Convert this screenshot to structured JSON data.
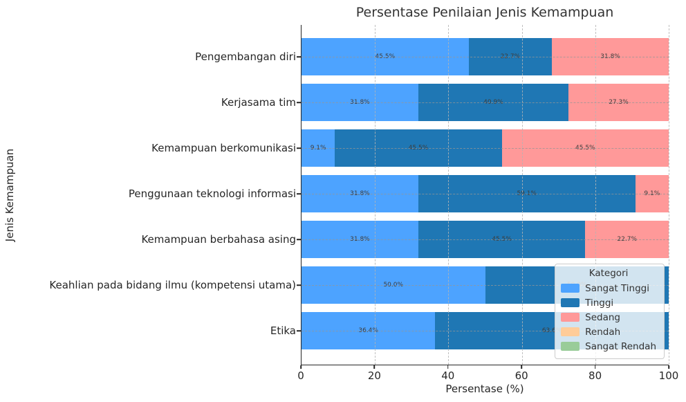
{
  "chart_data": {
    "type": "bar",
    "orientation": "horizontal",
    "stacked": true,
    "title": "Persentase Penilaian Jenis Kemampuan",
    "xlabel": "Persentase (%)",
    "ylabel": "Jenis Kemampuan",
    "xlim": [
      0,
      100
    ],
    "x_ticks": [
      0,
      20,
      40,
      60,
      80,
      100
    ],
    "grid": "dashed",
    "legend_title": "Kategori",
    "legend_position": "lower right",
    "categories": [
      "Pengembangan diri",
      "Kerjasama tim",
      "Kemampuan berkomunikasi",
      "Penggunaan teknologi informasi",
      "Kemampuan berbahasa asing",
      "Keahlian pada bidang ilmu (kompetensi utama)",
      "Etika"
    ],
    "series": [
      {
        "name": "Sangat Tinggi",
        "color": "#4DA3FF",
        "values": [
          45.5,
          31.8,
          9.1,
          31.8,
          31.8,
          50.0,
          36.4
        ]
      },
      {
        "name": "Tinggi",
        "color": "#1F77B4",
        "values": [
          22.7,
          40.9,
          45.5,
          59.1,
          45.5,
          50.0,
          63.6
        ]
      },
      {
        "name": "Sedang",
        "color": "#FF9999",
        "values": [
          31.8,
          27.3,
          45.5,
          9.1,
          22.7,
          0,
          0
        ]
      },
      {
        "name": "Rendah",
        "color": "#FFCC99",
        "values": [
          0,
          0,
          0,
          0,
          0,
          0,
          0
        ]
      },
      {
        "name": "Sangat Rendah",
        "color": "#99CC99",
        "values": [
          0,
          0,
          0,
          0,
          0,
          0,
          0
        ]
      }
    ],
    "bar_label_suffix": "%"
  }
}
